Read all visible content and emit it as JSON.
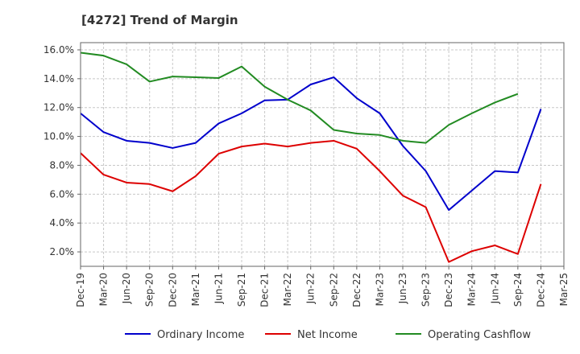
{
  "chart_data": {
    "type": "line",
    "title": "[4272]  Trend of Margin",
    "xlabel": "",
    "ylabel": "",
    "categories": [
      "Dec-19",
      "Mar-20",
      "Jun-20",
      "Sep-20",
      "Dec-20",
      "Mar-21",
      "Jun-21",
      "Sep-21",
      "Dec-21",
      "Mar-22",
      "Jun-22",
      "Sep-22",
      "Dec-22",
      "Mar-23",
      "Jun-23",
      "Sep-23",
      "Dec-23",
      "Mar-24",
      "Jun-24",
      "Sep-24",
      "Dec-24",
      "Mar-25"
    ],
    "ylim": [
      1.0,
      16.5
    ],
    "yticks": [
      2.0,
      4.0,
      6.0,
      8.0,
      10.0,
      12.0,
      14.0,
      16.0
    ],
    "ytick_labels": [
      "2.0%",
      "4.0%",
      "6.0%",
      "8.0%",
      "10.0%",
      "12.0%",
      "14.0%",
      "16.0%"
    ],
    "grid": true,
    "legend_position": "bottom",
    "series": [
      {
        "name": "Ordinary Income",
        "color": "#0000cc",
        "values": [
          11.6,
          10.3,
          9.7,
          9.55,
          9.2,
          9.55,
          10.9,
          11.6,
          12.5,
          12.55,
          13.6,
          14.1,
          12.65,
          11.6,
          9.35,
          7.6,
          4.9,
          6.25,
          7.6,
          7.5,
          11.9,
          null
        ]
      },
      {
        "name": "Net Income",
        "color": "#dd0000",
        "values": [
          8.85,
          7.35,
          6.8,
          6.7,
          6.2,
          7.25,
          8.8,
          9.3,
          9.5,
          9.3,
          9.55,
          9.7,
          9.15,
          7.6,
          5.9,
          5.1,
          1.3,
          2.05,
          2.45,
          1.85,
          6.7,
          null
        ]
      },
      {
        "name": "Operating Cashflow",
        "color": "#228b22",
        "values": [
          15.8,
          15.6,
          15.0,
          13.8,
          14.15,
          14.1,
          14.05,
          14.85,
          13.45,
          12.55,
          11.8,
          10.45,
          10.2,
          10.1,
          9.7,
          9.55,
          10.8,
          11.6,
          12.35,
          12.95,
          null,
          null
        ]
      }
    ]
  }
}
